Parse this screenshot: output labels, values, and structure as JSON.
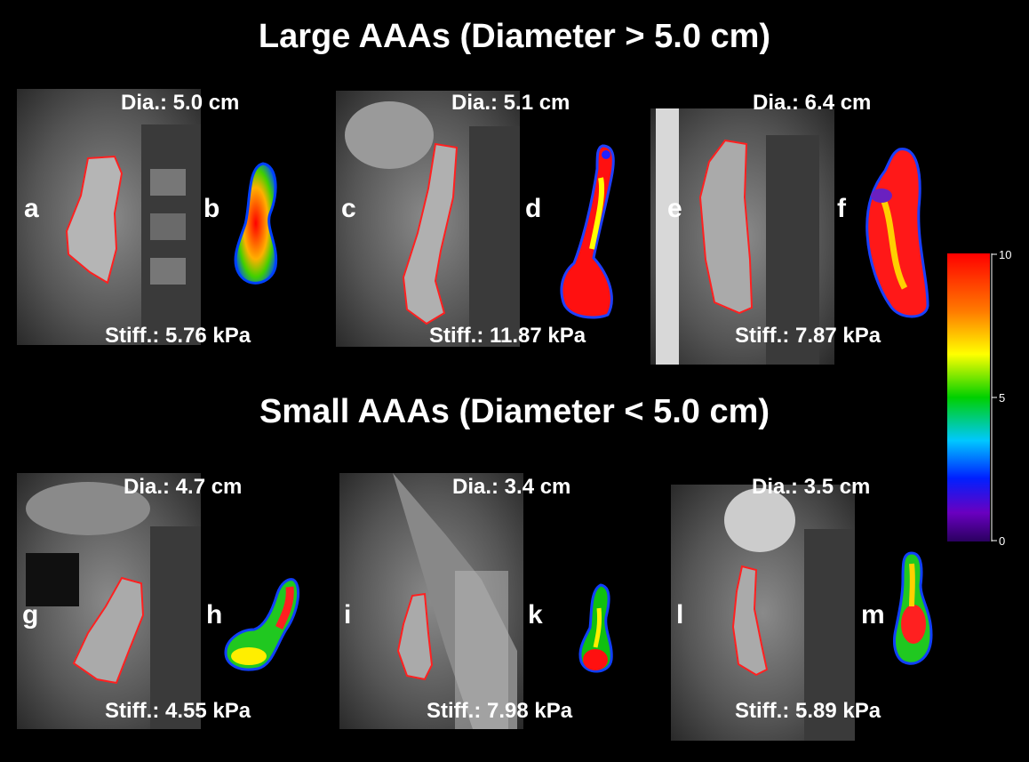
{
  "titles": {
    "large": "Large AAAs (Diameter > 5.0 cm)",
    "small": "Small AAAs (Diameter < 5.0 cm)"
  },
  "panels": [
    {
      "mri_letter": "a",
      "map_letter": "b",
      "diameter": "Dia.: 5.0 cm",
      "stiffness": "Stiff.: 5.76 kPa"
    },
    {
      "mri_letter": "c",
      "map_letter": "d",
      "diameter": "Dia.: 5.1 cm",
      "stiffness": "Stiff.: 11.87 kPa"
    },
    {
      "mri_letter": "e",
      "map_letter": "f",
      "diameter": "Dia.: 6.4 cm",
      "stiffness": "Stiff.: 7.87 kPa"
    },
    {
      "mri_letter": "g",
      "map_letter": "h",
      "diameter": "Dia.: 4.7 cm",
      "stiffness": "Stiff.: 4.55 kPa"
    },
    {
      "mri_letter": "i",
      "map_letter": "k",
      "diameter": "Dia.: 3.4 cm",
      "stiffness": "Stiff.: 7.98 kPa"
    },
    {
      "mri_letter": "l",
      "map_letter": "m",
      "diameter": "Dia.: 3.5 cm",
      "stiffness": "Stiff.: 5.89 kPa"
    }
  ],
  "colorbar": {
    "ticks": [
      "10",
      "5",
      "0"
    ],
    "range": [
      0,
      10
    ]
  },
  "colors": {
    "contour": "#ff2020"
  }
}
